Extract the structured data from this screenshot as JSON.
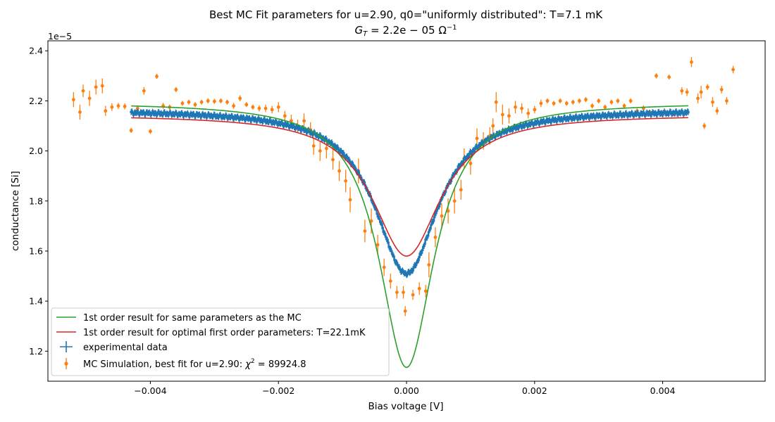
{
  "chart_data": {
    "type": "scatter",
    "title_line1": "Best MC Fit parameters for u=2.90, q0=\"uniformly distributed\":  T=7.1 mK",
    "title_line2_main": "G",
    "title_line2_sub": "T",
    "title_line2_rest": " = 2.2e − 05 Ω",
    "title_line2_sup": "−1",
    "xlabel": "Bias voltage [V]",
    "ylabel": "conductance [Si]",
    "y_offset_label": "1e−5",
    "xlim": [
      -0.0056,
      0.0056
    ],
    "ylim": [
      1.08,
      2.44
    ],
    "y_scale_note": "values in units of 1e-5 S",
    "x_ticks": [
      -0.004,
      -0.002,
      0.0,
      0.002,
      0.004
    ],
    "x_tick_labels": [
      "−0.004",
      "−0.002",
      "0.000",
      "0.002",
      "0.004"
    ],
    "y_ticks": [
      1.2,
      1.4,
      1.6,
      1.8,
      2.0,
      2.2,
      2.4
    ],
    "y_tick_labels": [
      "1.2",
      "1.4",
      "1.6",
      "1.8",
      "2.0",
      "2.2",
      "2.4"
    ],
    "colors": {
      "experimental": "#1f77b4",
      "mc": "#ff7f0e",
      "first_order_same": "#2ca02c",
      "first_order_optimal": "#d62728"
    },
    "series": [
      {
        "name": "1st order result for same parameters as the MC",
        "kind": "line",
        "model": {
          "center": 0.0,
          "baseline": 2.195,
          "depth": 1.06,
          "width": 0.00052,
          "x_min": -0.0043,
          "x_max": 0.0044
        }
      },
      {
        "name": "1st order result for optimal first order parameters: T=22.1mK",
        "kind": "line",
        "model": {
          "center": 0.0,
          "baseline": 2.145,
          "depth": 0.565,
          "width": 0.00065,
          "x_min": -0.0043,
          "x_max": 0.0044
        }
      },
      {
        "name": "experimental data",
        "kind": "errorbar-dense",
        "model": {
          "center": 0.0,
          "baseline": 2.165,
          "depth": 0.655,
          "width": 0.0006,
          "x_min": -0.0043,
          "x_max": 0.0044,
          "y_error": 0.012
        }
      },
      {
        "name": "MC Simulation, best fit for u=2.90:  χ² = 89924.8",
        "legend_prefix": "MC Simulation, best fit for u=2.90:  ",
        "legend_chi": "χ",
        "legend_chi_sup": "2",
        "legend_chi_rest": " = 89924.8",
        "kind": "errorbar",
        "points": [
          {
            "x": -0.0051,
            "y": 2.155,
            "err": 0.03
          },
          {
            "x": -0.0052,
            "y": 2.205,
            "err": 0.03
          },
          {
            "x": -0.00505,
            "y": 2.24,
            "err": 0.025
          },
          {
            "x": -0.00495,
            "y": 2.21,
            "err": 0.03
          },
          {
            "x": -0.00485,
            "y": 2.255,
            "err": 0.03
          },
          {
            "x": -0.00475,
            "y": 2.26,
            "err": 0.03
          },
          {
            "x": -0.0047,
            "y": 2.16,
            "err": 0.02
          },
          {
            "x": -0.0046,
            "y": 2.175,
            "err": 0.015
          },
          {
            "x": -0.0045,
            "y": 2.18,
            "err": 0.012
          },
          {
            "x": -0.0044,
            "y": 2.178,
            "err": 0.012
          },
          {
            "x": -0.0043,
            "y": 2.082,
            "err": 0.01
          },
          {
            "x": -0.0042,
            "y": 2.17,
            "err": 0.012
          },
          {
            "x": -0.0041,
            "y": 2.24,
            "err": 0.015
          },
          {
            "x": -0.004,
            "y": 2.078,
            "err": 0.01
          },
          {
            "x": -0.0039,
            "y": 2.298,
            "err": 0.01
          },
          {
            "x": -0.0038,
            "y": 2.18,
            "err": 0.012
          },
          {
            "x": -0.0037,
            "y": 2.175,
            "err": 0.01
          },
          {
            "x": -0.0036,
            "y": 2.245,
            "err": 0.01
          },
          {
            "x": -0.0035,
            "y": 2.19,
            "err": 0.01
          },
          {
            "x": -0.0034,
            "y": 2.195,
            "err": 0.01
          },
          {
            "x": -0.0033,
            "y": 2.185,
            "err": 0.01
          },
          {
            "x": -0.0032,
            "y": 2.195,
            "err": 0.01
          },
          {
            "x": -0.0031,
            "y": 2.2,
            "err": 0.01
          },
          {
            "x": -0.003,
            "y": 2.198,
            "err": 0.01
          },
          {
            "x": -0.0029,
            "y": 2.2,
            "err": 0.01
          },
          {
            "x": -0.0028,
            "y": 2.195,
            "err": 0.01
          },
          {
            "x": -0.0027,
            "y": 2.18,
            "err": 0.012
          },
          {
            "x": -0.0026,
            "y": 2.21,
            "err": 0.012
          },
          {
            "x": -0.0025,
            "y": 2.185,
            "err": 0.01
          },
          {
            "x": -0.0024,
            "y": 2.175,
            "err": 0.01
          },
          {
            "x": -0.0023,
            "y": 2.17,
            "err": 0.012
          },
          {
            "x": -0.0022,
            "y": 2.17,
            "err": 0.015
          },
          {
            "x": -0.0021,
            "y": 2.165,
            "err": 0.015
          },
          {
            "x": -0.002,
            "y": 2.175,
            "err": 0.02
          },
          {
            "x": -0.0019,
            "y": 2.14,
            "err": 0.02
          },
          {
            "x": -0.0018,
            "y": 2.12,
            "err": 0.025
          },
          {
            "x": -0.0017,
            "y": 2.1,
            "err": 0.025
          },
          {
            "x": -0.0016,
            "y": 2.12,
            "err": 0.03
          },
          {
            "x": -0.0015,
            "y": 2.085,
            "err": 0.03
          },
          {
            "x": -0.00145,
            "y": 2.02,
            "err": 0.035
          },
          {
            "x": -0.00135,
            "y": 2.0,
            "err": 0.04
          },
          {
            "x": -0.00125,
            "y": 2.01,
            "err": 0.04
          },
          {
            "x": -0.00115,
            "y": 1.965,
            "err": 0.04
          },
          {
            "x": -0.00105,
            "y": 1.92,
            "err": 0.04
          },
          {
            "x": -0.00095,
            "y": 1.88,
            "err": 0.045
          },
          {
            "x": -0.00088,
            "y": 1.805,
            "err": 0.05
          },
          {
            "x": -0.00075,
            "y": 1.92,
            "err": 0.05
          },
          {
            "x": -0.00065,
            "y": 1.68,
            "err": 0.045
          },
          {
            "x": -0.00055,
            "y": 1.72,
            "err": 0.05
          },
          {
            "x": -0.00045,
            "y": 1.625,
            "err": 0.04
          },
          {
            "x": -0.00035,
            "y": 1.535,
            "err": 0.035
          },
          {
            "x": -0.00025,
            "y": 1.48,
            "err": 0.03
          },
          {
            "x": -0.00015,
            "y": 1.435,
            "err": 0.025
          },
          {
            "x": -5e-05,
            "y": 1.435,
            "err": 0.025
          },
          {
            "x": -2e-05,
            "y": 1.36,
            "err": 0.02
          },
          {
            "x": 0.0001,
            "y": 1.425,
            "err": 0.02
          },
          {
            "x": 0.0002,
            "y": 1.45,
            "err": 0.025
          },
          {
            "x": 0.0003,
            "y": 1.44,
            "err": 0.025
          },
          {
            "x": 0.00035,
            "y": 1.545,
            "err": 0.05
          },
          {
            "x": 0.00045,
            "y": 1.655,
            "err": 0.04
          },
          {
            "x": 0.00055,
            "y": 1.74,
            "err": 0.05
          },
          {
            "x": 0.00065,
            "y": 1.76,
            "err": 0.05
          },
          {
            "x": 0.00075,
            "y": 1.8,
            "err": 0.05
          },
          {
            "x": 0.00085,
            "y": 1.845,
            "err": 0.04
          },
          {
            "x": 0.0009,
            "y": 1.97,
            "err": 0.04
          },
          {
            "x": 0.001,
            "y": 1.95,
            "err": 0.045
          },
          {
            "x": 0.0011,
            "y": 2.05,
            "err": 0.04
          },
          {
            "x": 0.0012,
            "y": 2.04,
            "err": 0.035
          },
          {
            "x": 0.0013,
            "y": 2.06,
            "err": 0.035
          },
          {
            "x": 0.00135,
            "y": 2.1,
            "err": 0.03
          },
          {
            "x": 0.0014,
            "y": 2.195,
            "err": 0.04
          },
          {
            "x": 0.0015,
            "y": 2.145,
            "err": 0.04
          },
          {
            "x": 0.0016,
            "y": 2.14,
            "err": 0.03
          },
          {
            "x": 0.0017,
            "y": 2.175,
            "err": 0.025
          },
          {
            "x": 0.0018,
            "y": 2.17,
            "err": 0.02
          },
          {
            "x": 0.0019,
            "y": 2.15,
            "err": 0.02
          },
          {
            "x": 0.002,
            "y": 2.165,
            "err": 0.015
          },
          {
            "x": 0.0021,
            "y": 2.19,
            "err": 0.015
          },
          {
            "x": 0.0022,
            "y": 2.2,
            "err": 0.01
          },
          {
            "x": 0.0023,
            "y": 2.19,
            "err": 0.01
          },
          {
            "x": 0.0024,
            "y": 2.2,
            "err": 0.01
          },
          {
            "x": 0.0025,
            "y": 2.19,
            "err": 0.01
          },
          {
            "x": 0.0026,
            "y": 2.195,
            "err": 0.01
          },
          {
            "x": 0.0027,
            "y": 2.2,
            "err": 0.01
          },
          {
            "x": 0.0028,
            "y": 2.205,
            "err": 0.01
          },
          {
            "x": 0.0029,
            "y": 2.18,
            "err": 0.01
          },
          {
            "x": 0.003,
            "y": 2.2,
            "err": 0.01
          },
          {
            "x": 0.0031,
            "y": 2.175,
            "err": 0.01
          },
          {
            "x": 0.0032,
            "y": 2.195,
            "err": 0.01
          },
          {
            "x": 0.0033,
            "y": 2.2,
            "err": 0.01
          },
          {
            "x": 0.0034,
            "y": 2.18,
            "err": 0.01
          },
          {
            "x": 0.0035,
            "y": 2.2,
            "err": 0.01
          },
          {
            "x": 0.0036,
            "y": 2.16,
            "err": 0.01
          },
          {
            "x": 0.0037,
            "y": 2.17,
            "err": 0.012
          },
          {
            "x": 0.0038,
            "y": 2.155,
            "err": 0.01
          },
          {
            "x": 0.0039,
            "y": 2.3,
            "err": 0.01
          },
          {
            "x": 0.004,
            "y": 2.15,
            "err": 0.012
          },
          {
            "x": 0.0041,
            "y": 2.295,
            "err": 0.01
          },
          {
            "x": 0.0042,
            "y": 2.15,
            "err": 0.012
          },
          {
            "x": 0.0043,
            "y": 2.24,
            "err": 0.015
          },
          {
            "x": 0.00438,
            "y": 2.235,
            "err": 0.015
          },
          {
            "x": 0.00445,
            "y": 2.355,
            "err": 0.02
          },
          {
            "x": 0.00455,
            "y": 2.21,
            "err": 0.02
          },
          {
            "x": 0.0046,
            "y": 2.235,
            "err": 0.025
          },
          {
            "x": 0.00465,
            "y": 2.1,
            "err": 0.012
          },
          {
            "x": 0.0047,
            "y": 2.255,
            "err": 0.012
          },
          {
            "x": 0.00478,
            "y": 2.195,
            "err": 0.02
          },
          {
            "x": 0.00485,
            "y": 2.16,
            "err": 0.015
          },
          {
            "x": 0.00492,
            "y": 2.245,
            "err": 0.015
          },
          {
            "x": 0.005,
            "y": 2.2,
            "err": 0.015
          },
          {
            "x": 0.0051,
            "y": 2.325,
            "err": 0.015
          }
        ]
      }
    ],
    "legend_position": "lower-left",
    "grid": false
  }
}
